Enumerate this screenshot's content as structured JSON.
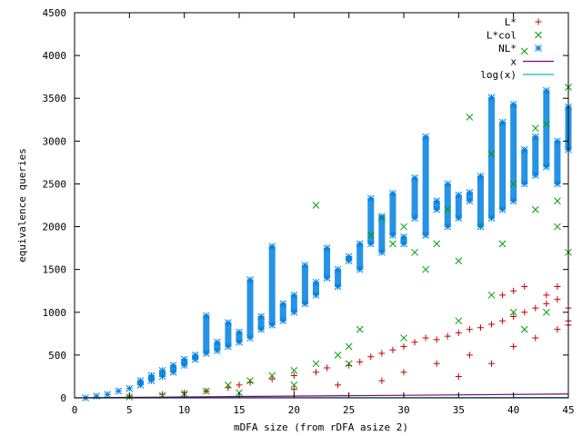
{
  "chart_data": {
    "type": "scatter",
    "title": "",
    "xlabel": "mDFA size (from rDFA asize 2)",
    "ylabel": "equivalence queries",
    "xlim": [
      0,
      45
    ],
    "ylim": [
      0,
      4500
    ],
    "xticks": [
      0,
      5,
      10,
      15,
      20,
      25,
      30,
      35,
      40,
      45
    ],
    "yticks": [
      0,
      500,
      1000,
      1500,
      2000,
      2500,
      3000,
      3500,
      4000,
      4500
    ],
    "legend_position": "top-right",
    "grid": false,
    "series": [
      {
        "name": "L*",
        "marker": "plus",
        "color": "#cc0000",
        "points": [
          [
            5,
            20
          ],
          [
            8,
            40
          ],
          [
            10,
            60
          ],
          [
            12,
            80
          ],
          [
            14,
            120
          ],
          [
            15,
            150
          ],
          [
            16,
            180
          ],
          [
            18,
            220
          ],
          [
            20,
            260
          ],
          [
            22,
            300
          ],
          [
            23,
            350
          ],
          [
            25,
            380
          ],
          [
            26,
            420
          ],
          [
            27,
            480
          ],
          [
            28,
            520
          ],
          [
            29,
            560
          ],
          [
            30,
            600
          ],
          [
            31,
            650
          ],
          [
            32,
            700
          ],
          [
            33,
            680
          ],
          [
            34,
            720
          ],
          [
            35,
            760
          ],
          [
            36,
            800
          ],
          [
            37,
            820
          ],
          [
            38,
            860
          ],
          [
            39,
            900
          ],
          [
            40,
            950
          ],
          [
            41,
            1000
          ],
          [
            42,
            1050
          ],
          [
            43,
            1100
          ],
          [
            44,
            1150
          ],
          [
            45,
            900
          ],
          [
            39,
            1200
          ],
          [
            41,
            1300
          ],
          [
            43,
            1200
          ],
          [
            44,
            1300
          ],
          [
            45,
            1050
          ],
          [
            30,
            300
          ],
          [
            33,
            400
          ],
          [
            36,
            500
          ],
          [
            40,
            600
          ],
          [
            42,
            700
          ],
          [
            44,
            800
          ],
          [
            38,
            400
          ],
          [
            35,
            250
          ],
          [
            28,
            200
          ],
          [
            24,
            150
          ],
          [
            20,
            100
          ],
          [
            45,
            850
          ],
          [
            40,
            1250
          ]
        ]
      },
      {
        "name": "L*col",
        "marker": "cross",
        "color": "#00a000",
        "points": [
          [
            5,
            10
          ],
          [
            8,
            30
          ],
          [
            10,
            50
          ],
          [
            12,
            80
          ],
          [
            14,
            150
          ],
          [
            16,
            200
          ],
          [
            18,
            260
          ],
          [
            20,
            320
          ],
          [
            22,
            2250
          ],
          [
            22,
            400
          ],
          [
            24,
            500
          ],
          [
            25,
            600
          ],
          [
            26,
            800
          ],
          [
            27,
            1900
          ],
          [
            28,
            2100
          ],
          [
            29,
            1800
          ],
          [
            30,
            2000
          ],
          [
            31,
            1700
          ],
          [
            32,
            1500
          ],
          [
            33,
            1800
          ],
          [
            34,
            2200
          ],
          [
            35,
            1600
          ],
          [
            36,
            3280
          ],
          [
            37,
            2000
          ],
          [
            38,
            2850
          ],
          [
            39,
            1800
          ],
          [
            40,
            2500
          ],
          [
            41,
            4050
          ],
          [
            42,
            3150
          ],
          [
            43,
            3200
          ],
          [
            44,
            2300
          ],
          [
            45,
            3630
          ],
          [
            45,
            1700
          ],
          [
            42,
            2200
          ],
          [
            40,
            1000
          ],
          [
            38,
            1200
          ],
          [
            35,
            900
          ],
          [
            30,
            700
          ],
          [
            25,
            400
          ],
          [
            20,
            150
          ],
          [
            15,
            60
          ],
          [
            44,
            2000
          ],
          [
            43,
            1000
          ],
          [
            41,
            800
          ]
        ]
      },
      {
        "name": "NL*",
        "marker": "star",
        "color": "#0080e0",
        "points": [
          [
            1,
            0
          ],
          [
            2,
            20
          ],
          [
            3,
            40
          ],
          [
            4,
            80
          ],
          [
            5,
            110
          ],
          [
            6,
            150
          ],
          [
            7,
            200
          ],
          [
            8,
            250
          ],
          [
            9,
            300
          ],
          [
            10,
            380
          ],
          [
            11,
            450
          ],
          [
            12,
            520
          ],
          [
            12,
            960
          ],
          [
            13,
            650
          ],
          [
            14,
            880
          ],
          [
            15,
            770
          ],
          [
            16,
            1380
          ],
          [
            17,
            950
          ],
          [
            18,
            1770
          ],
          [
            19,
            1100
          ],
          [
            20,
            1200
          ],
          [
            21,
            1550
          ],
          [
            22,
            1350
          ],
          [
            23,
            1750
          ],
          [
            24,
            1500
          ],
          [
            25,
            1650
          ],
          [
            26,
            1800
          ],
          [
            27,
            2330
          ],
          [
            28,
            2120
          ],
          [
            29,
            2390
          ],
          [
            30,
            1880
          ],
          [
            31,
            2570
          ],
          [
            32,
            3050
          ],
          [
            33,
            2200
          ],
          [
            34,
            2500
          ],
          [
            35,
            2370
          ],
          [
            36,
            2400
          ],
          [
            37,
            2590
          ],
          [
            38,
            3510
          ],
          [
            39,
            3220
          ],
          [
            40,
            3430
          ],
          [
            41,
            2900
          ],
          [
            42,
            3050
          ],
          [
            43,
            3590
          ],
          [
            44,
            3000
          ],
          [
            45,
            2900
          ],
          [
            45,
            3400
          ],
          [
            44,
            2500
          ],
          [
            43,
            2700
          ],
          [
            42,
            2600
          ],
          [
            41,
            2500
          ],
          [
            40,
            2300
          ],
          [
            39,
            2200
          ],
          [
            38,
            2100
          ],
          [
            37,
            2000
          ],
          [
            36,
            2300
          ],
          [
            35,
            2100
          ],
          [
            34,
            2000
          ],
          [
            33,
            2300
          ],
          [
            32,
            1900
          ],
          [
            31,
            2100
          ],
          [
            30,
            1800
          ],
          [
            29,
            1900
          ],
          [
            28,
            1700
          ],
          [
            27,
            1800
          ],
          [
            26,
            1500
          ],
          [
            25,
            1600
          ],
          [
            24,
            1300
          ],
          [
            23,
            1400
          ],
          [
            22,
            1200
          ],
          [
            21,
            1100
          ],
          [
            20,
            1000
          ],
          [
            19,
            900
          ],
          [
            18,
            850
          ],
          [
            17,
            800
          ],
          [
            16,
            700
          ],
          [
            15,
            650
          ],
          [
            14,
            600
          ],
          [
            13,
            550
          ],
          [
            11,
            500
          ],
          [
            10,
            450
          ],
          [
            9,
            380
          ],
          [
            8,
            320
          ],
          [
            7,
            260
          ],
          [
            6,
            200
          ]
        ]
      },
      {
        "name": "x",
        "marker": "line",
        "color": "#800080",
        "points": [
          [
            0,
            0
          ],
          [
            45,
            45
          ]
        ]
      },
      {
        "name": "log(x)",
        "marker": "line",
        "color": "#00c0c0",
        "points": [
          [
            1,
            0
          ],
          [
            45,
            3.81
          ]
        ]
      }
    ]
  }
}
